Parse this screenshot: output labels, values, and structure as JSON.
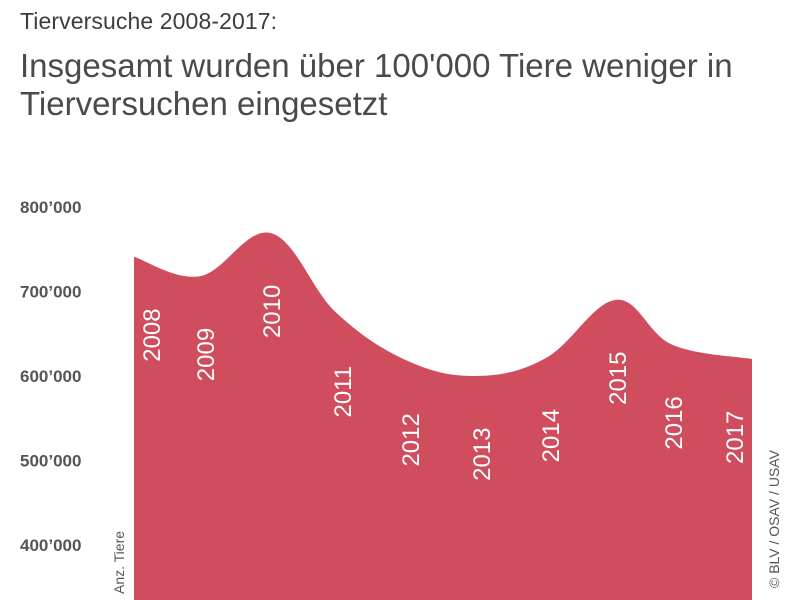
{
  "supertitle": "Tierversuche 2008-2017:",
  "headline": "Insgesamt wurden über 100'000 Tiere weniger in Tierversuchen eingesetzt",
  "credit": "© BLV / OSAV / USAV",
  "colors": {
    "area": "#d04d5e",
    "tick_text": "#555555",
    "year_text": "#ffffff"
  },
  "chart_data": {
    "type": "area",
    "title": "",
    "xlabel": "",
    "ylabel": "Anz. Tiere",
    "ylim": [
      360000,
      800000
    ],
    "y_ticks": [
      800000,
      700000,
      600000,
      500000,
      400000
    ],
    "y_tick_labels": [
      "800’000",
      "700’000",
      "600’000",
      "500’000",
      "400’000"
    ],
    "categories": [
      "2008",
      "2009",
      "2010",
      "2011",
      "2012",
      "2013",
      "2014",
      "2015",
      "2016",
      "2017"
    ],
    "values": [
      741000,
      718000,
      769000,
      675000,
      617000,
      600000,
      622000,
      690000,
      637000,
      620000
    ],
    "data_labels": [
      "2008",
      "2009",
      "2010",
      "2011",
      "2012",
      "2013",
      "2014",
      "2015",
      "2016",
      "2017"
    ],
    "grid": false,
    "legend": "none"
  }
}
